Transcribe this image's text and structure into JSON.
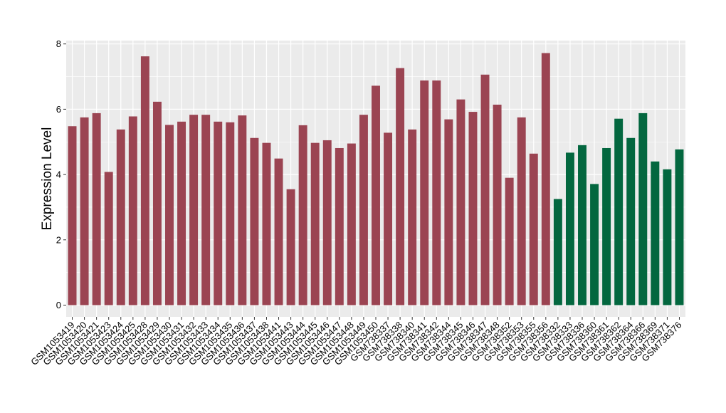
{
  "chart_data": {
    "type": "bar",
    "title": "",
    "xlabel": "",
    "ylabel": "Expression Level",
    "ylim": [
      0,
      8.2
    ],
    "yticks": [
      0,
      2,
      4,
      6,
      8
    ],
    "ytick_labels": [
      "0",
      "2",
      "4",
      "6",
      "8"
    ],
    "grid": true,
    "legend": "none",
    "colors": {
      "group1": "#9b4452",
      "group2": "#03673f",
      "panel": "#ebebeb",
      "gridline": "#ffffff"
    },
    "categories": [
      "GSM1053419",
      "GSM1053420",
      "GSM1053421",
      "GSM1053423",
      "GSM1053424",
      "GSM1053425",
      "GSM1053428",
      "GSM1053429",
      "GSM1053430",
      "GSM1053431",
      "GSM1053432",
      "GSM1053433",
      "GSM1053434",
      "GSM1053435",
      "GSM1053436",
      "GSM1053437",
      "GSM1053438",
      "GSM1053441",
      "GSM1053443",
      "GSM1053444",
      "GSM1053445",
      "GSM1053446",
      "GSM1053447",
      "GSM1053448",
      "GSM1053449",
      "GSM1053450",
      "GSM738337",
      "GSM738338",
      "GSM738340",
      "GSM738341",
      "GSM738342",
      "GSM738344",
      "GSM738345",
      "GSM738346",
      "GSM738347",
      "GSM738348",
      "GSM738352",
      "GSM738353",
      "GSM738355",
      "GSM738356",
      "GSM738332",
      "GSM738333",
      "GSM738336",
      "GSM738360",
      "GSM738361",
      "GSM738362",
      "GSM738364",
      "GSM738366",
      "GSM738369",
      "GSM738371",
      "GSM738376"
    ],
    "values": [
      5.48,
      5.75,
      5.88,
      4.08,
      5.38,
      5.78,
      7.62,
      6.23,
      5.52,
      5.62,
      5.83,
      5.83,
      5.62,
      5.6,
      5.81,
      5.12,
      4.97,
      4.49,
      3.55,
      5.51,
      4.97,
      5.05,
      4.81,
      4.95,
      5.83,
      6.72,
      5.28,
      7.26,
      5.38,
      6.88,
      6.88,
      5.69,
      6.3,
      5.92,
      7.06,
      6.14,
      3.9,
      5.75,
      4.64,
      7.72,
      3.25,
      4.67,
      4.9,
      3.71,
      4.81,
      5.71,
      5.12,
      5.88,
      4.4,
      4.16,
      4.77
    ],
    "groups": [
      1,
      1,
      1,
      1,
      1,
      1,
      1,
      1,
      1,
      1,
      1,
      1,
      1,
      1,
      1,
      1,
      1,
      1,
      1,
      1,
      1,
      1,
      1,
      1,
      1,
      1,
      1,
      1,
      1,
      1,
      1,
      1,
      1,
      1,
      1,
      1,
      1,
      1,
      1,
      1,
      2,
      2,
      2,
      2,
      2,
      2,
      2,
      2,
      2,
      2,
      2
    ]
  }
}
